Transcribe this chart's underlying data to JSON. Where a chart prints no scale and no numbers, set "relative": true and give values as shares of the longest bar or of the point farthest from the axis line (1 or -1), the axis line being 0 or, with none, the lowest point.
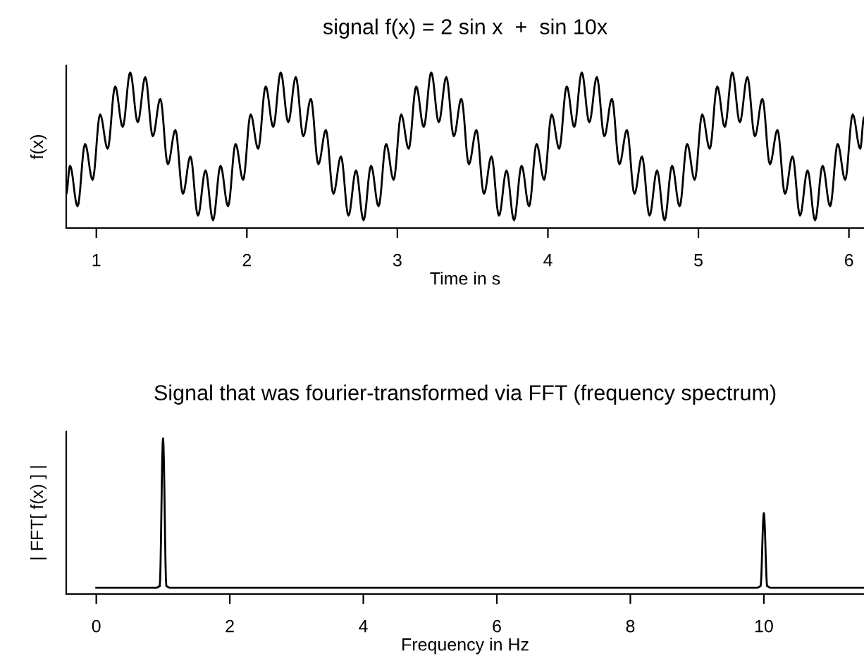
{
  "chart_data": [
    {
      "type": "line",
      "title": "signal f(x) = 2 sin x  +  sin 10x",
      "xlabel": "Time in s",
      "ylabel": "f(x)",
      "relative": true,
      "xlim": [
        0.8,
        6.1
      ],
      "xticks": [
        1,
        2,
        3,
        4,
        5,
        6
      ],
      "tick_labels": "x",
      "grid": false,
      "marker": "none",
      "line_style": "solid",
      "series": [
        {
          "color": "#000000",
          "x": [
            0.8,
            0.825,
            0.875,
            0.925,
            0.975,
            1.025,
            1.075,
            1.125,
            1.175,
            1.225,
            1.275,
            1.325,
            1.375,
            1.425,
            1.475,
            1.525,
            1.575,
            1.625,
            1.675,
            1.725,
            1.775,
            1.825,
            1.875,
            1.925,
            1.975,
            2.025,
            2.075,
            2.125,
            2.175,
            2.225,
            2.275,
            2.325,
            2.375,
            2.425,
            2.475,
            2.525,
            2.575,
            2.625,
            2.675,
            2.725,
            2.775,
            2.825,
            2.875,
            2.925,
            2.975,
            3.025,
            3.075,
            3.125,
            3.175,
            3.225,
            3.275,
            3.325,
            3.375,
            3.425,
            3.475,
            3.525,
            3.575,
            3.625,
            3.675,
            3.725,
            3.775,
            3.825,
            3.875,
            3.925,
            3.975,
            4.025,
            4.075,
            4.125,
            4.175,
            4.225,
            4.275,
            4.325,
            4.375,
            4.425,
            4.475,
            4.525,
            4.575,
            4.625,
            4.675,
            4.725,
            4.775,
            4.825,
            4.875,
            4.925,
            4.975,
            5.025,
            5.075,
            5.125,
            5.175,
            5.225,
            5.275,
            5.325,
            5.375,
            5.425,
            5.475,
            5.525,
            5.575,
            5.625,
            5.675,
            5.725,
            5.775,
            5.825,
            5.875,
            5.925,
            5.975,
            6.025,
            6.075,
            6.1
          ],
          "values": [
            0.22,
            0.4,
            0.14,
            0.54,
            0.31,
            0.73,
            0.51,
            0.91,
            0.65,
            1.0,
            0.68,
            0.97,
            0.59,
            0.83,
            0.41,
            0.63,
            0.22,
            0.46,
            0.08,
            0.37,
            0.05,
            0.4,
            0.14,
            0.54,
            0.31,
            0.73,
            0.51,
            0.91,
            0.65,
            1.0,
            0.68,
            0.97,
            0.59,
            0.83,
            0.41,
            0.63,
            0.22,
            0.46,
            0.08,
            0.37,
            0.05,
            0.4,
            0.14,
            0.54,
            0.31,
            0.73,
            0.51,
            0.91,
            0.65,
            1.0,
            0.68,
            0.97,
            0.59,
            0.83,
            0.41,
            0.63,
            0.22,
            0.46,
            0.08,
            0.37,
            0.05,
            0.4,
            0.14,
            0.54,
            0.31,
            0.73,
            0.51,
            0.91,
            0.65,
            1.0,
            0.68,
            0.97,
            0.59,
            0.83,
            0.41,
            0.63,
            0.22,
            0.46,
            0.08,
            0.37,
            0.05,
            0.4,
            0.14,
            0.54,
            0.31,
            0.73,
            0.51,
            0.91,
            0.65,
            1.0,
            0.68,
            0.97,
            0.59,
            0.83,
            0.41,
            0.63,
            0.22,
            0.46,
            0.08,
            0.37,
            0.05,
            0.4,
            0.14,
            0.54,
            0.31,
            0.73,
            0.51,
            0.71
          ]
        }
      ]
    },
    {
      "type": "line",
      "title": "Signal that was fourier-transformed via FFT (frequency spectrum)",
      "xlabel": "Frequency in Hz",
      "ylabel": "| FFT[ f(x) ] |",
      "relative": true,
      "xlim": [
        -0.45,
        11.5
      ],
      "xticks": [
        0,
        2,
        4,
        6,
        8,
        10
      ],
      "tick_labels": "x",
      "grid": false,
      "marker": "none",
      "line_style": "solid",
      "series": [
        {
          "color": "#000000",
          "x": [
            0,
            0.9,
            0.95,
            1,
            1.05,
            1.1,
            9.9,
            9.95,
            10,
            10.05,
            10.1,
            11.5
          ],
          "values": [
            0.04,
            0.04,
            0.05,
            1,
            0.05,
            0.04,
            0.04,
            0.05,
            0.52,
            0.05,
            0.04,
            0.04
          ]
        }
      ]
    }
  ]
}
